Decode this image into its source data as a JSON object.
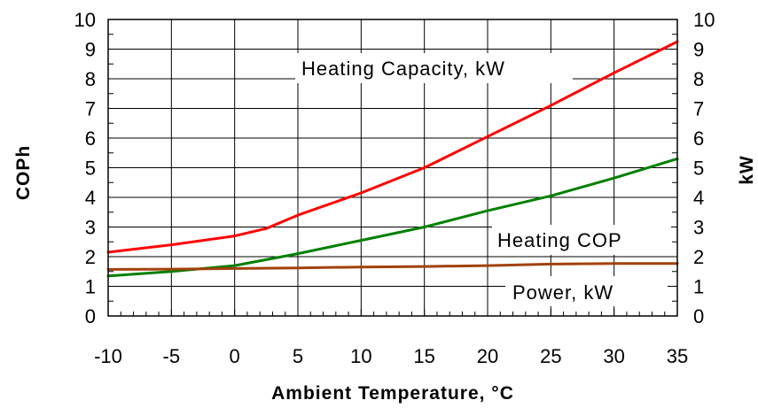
{
  "chart_data": {
    "type": "line",
    "xlabel": "Ambient Temperature, °C",
    "ylabel_left": "COPh",
    "ylabel_right": "kW",
    "xlim": [
      -10,
      35
    ],
    "ylim": [
      0,
      10
    ],
    "x_ticks": [
      -10,
      -5,
      0,
      5,
      10,
      15,
      20,
      25,
      30,
      35
    ],
    "y_ticks": [
      0,
      1,
      2,
      3,
      4,
      5,
      6,
      7,
      8,
      9,
      10
    ],
    "grid": true,
    "series": [
      {
        "name": "Heating Capacity, kW",
        "color": "#ff0000",
        "x": [
          -10,
          -5,
          0,
          2.5,
          5,
          10,
          15,
          20,
          25,
          30,
          35
        ],
        "y": [
          2.15,
          2.4,
          2.7,
          2.95,
          3.4,
          4.15,
          5.0,
          6.05,
          7.1,
          8.2,
          9.25
        ]
      },
      {
        "name": "Heating COP",
        "color": "#008000",
        "x": [
          -10,
          -5,
          0,
          5,
          10,
          15,
          20,
          25,
          30,
          35
        ],
        "y": [
          1.35,
          1.5,
          1.7,
          2.1,
          2.55,
          3.0,
          3.55,
          4.05,
          4.65,
          5.3
        ]
      },
      {
        "name": "Power, kW",
        "color": "#a0420a",
        "x": [
          -10,
          -5,
          0,
          5,
          10,
          15,
          20,
          25,
          30,
          35
        ],
        "y": [
          1.57,
          1.58,
          1.6,
          1.62,
          1.65,
          1.67,
          1.7,
          1.75,
          1.77,
          1.77
        ]
      }
    ]
  }
}
